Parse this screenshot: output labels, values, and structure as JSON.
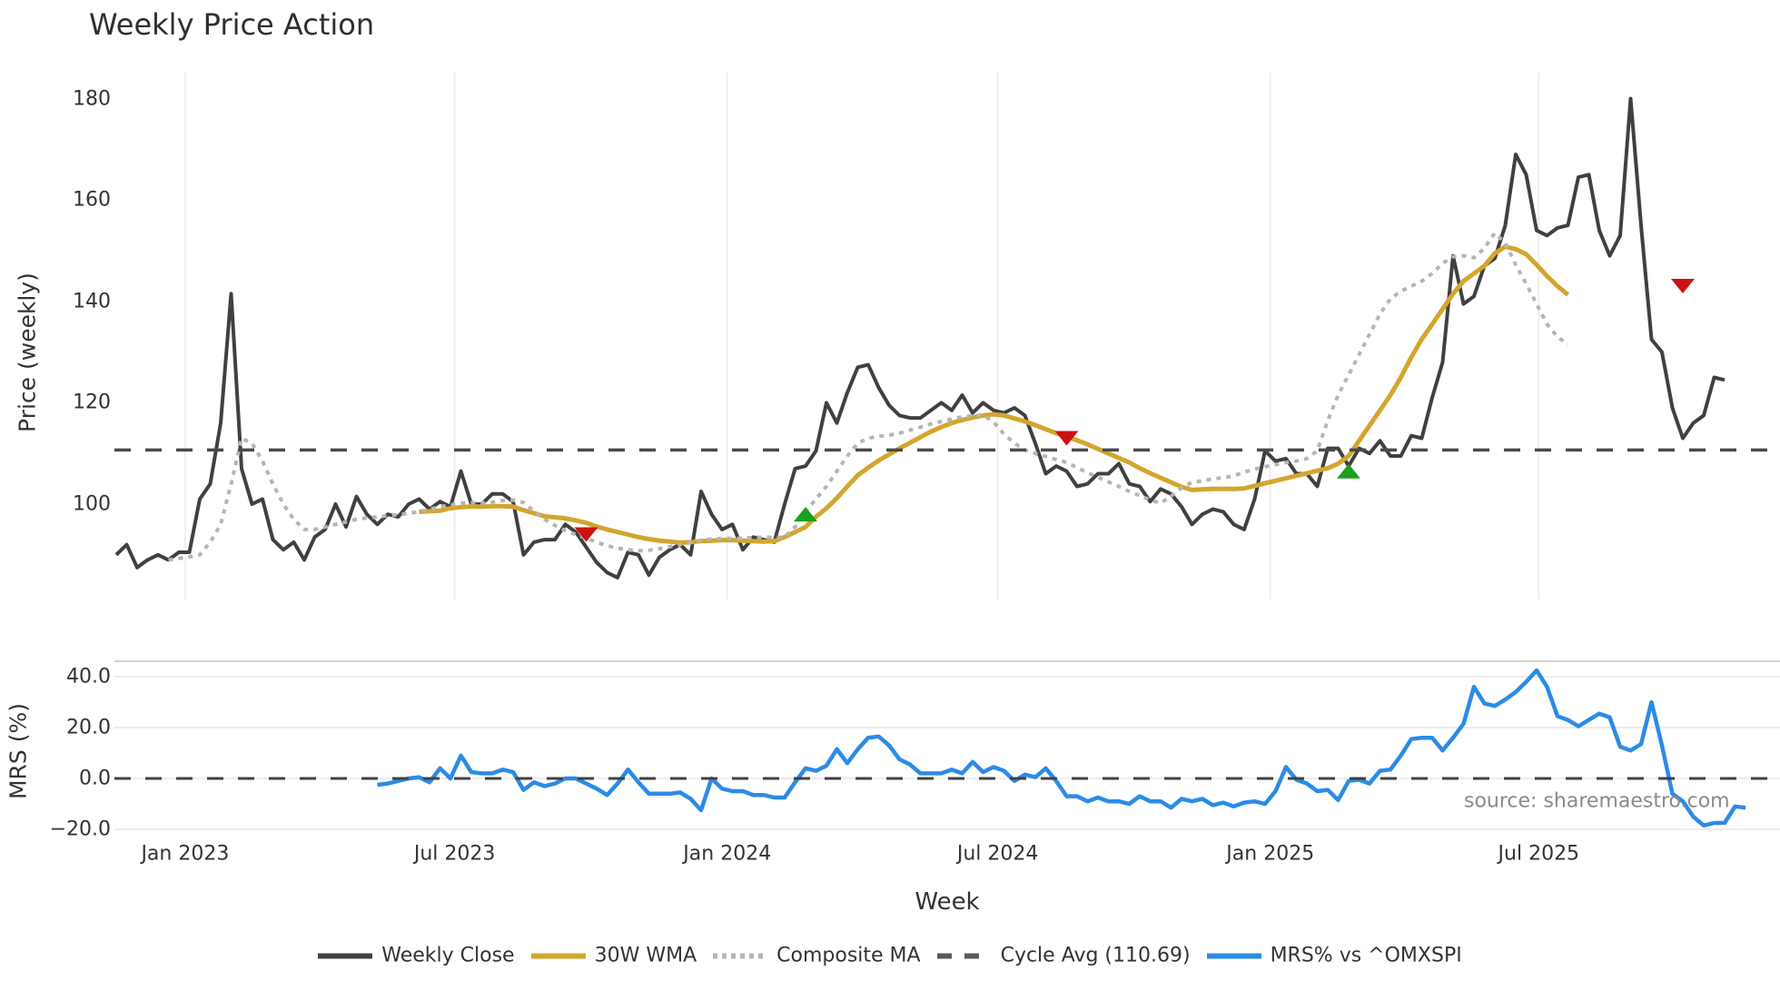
{
  "title": "Weekly Price Action",
  "source_note": "source: sharemaestro.com",
  "chart_data": {
    "type": "line",
    "title": "Weekly Price Action",
    "xlabel": "Week",
    "panels": [
      {
        "name": "price",
        "ylabel": "Price (weekly)",
        "yticks": [
          100,
          120,
          140,
          160,
          180
        ],
        "ylim": [
          80,
          185
        ],
        "grid": true
      },
      {
        "name": "mrs",
        "ylabel": "MRS (%)",
        "yticks": [
          -20.0,
          0.0,
          20.0,
          40.0
        ],
        "ytick_labels": [
          "−20.0",
          "0.0",
          "20.0",
          "40.0"
        ],
        "ylim": [
          -22,
          44
        ],
        "grid": true
      }
    ],
    "x_start": "2022-11-14",
    "x_interval": "weekly",
    "x_ticks": [
      {
        "label": "Jan 2023",
        "index": 6.6
      },
      {
        "label": "Jul 2023",
        "index": 32.4
      },
      {
        "label": "Jan 2024",
        "index": 58.5
      },
      {
        "label": "Jul 2024",
        "index": 84.4
      },
      {
        "label": "Jan 2025",
        "index": 110.5
      },
      {
        "label": "Jul 2025",
        "index": 136.2
      }
    ],
    "series": [
      {
        "name": "Weekly Close",
        "panel": "price",
        "color": "#404040",
        "style": "solid",
        "width": 4,
        "start_index": 0,
        "values": [
          90,
          92,
          87.5,
          89,
          90,
          89,
          90.5,
          90.5,
          101,
          104,
          116,
          141.5,
          107,
          100,
          101,
          93,
          91,
          92.5,
          89,
          93.5,
          95,
          100,
          95.5,
          101.5,
          98,
          96,
          98,
          97.5,
          100,
          101,
          99,
          100.5,
          99.5,
          106.5,
          100,
          100,
          102,
          102,
          100.5,
          90,
          92.5,
          93,
          93,
          96,
          94.5,
          91.5,
          88.5,
          86.5,
          85.5,
          90.5,
          90,
          86,
          89.5,
          91,
          92,
          90,
          102.5,
          98,
          95,
          96,
          91,
          93.5,
          93,
          92.5,
          100,
          107,
          107.5,
          110.5,
          120,
          116,
          122,
          127,
          127.5,
          123,
          119.5,
          117.5,
          117,
          117,
          118.5,
          120,
          118.5,
          121.5,
          118,
          120,
          118.5,
          118,
          119,
          117.5,
          112,
          106,
          107.5,
          106.5,
          103.5,
          104,
          106,
          106,
          108,
          104,
          103.5,
          100.5,
          103,
          102,
          99.5,
          96,
          98,
          99,
          98.5,
          96,
          95,
          101,
          110.5,
          108.5,
          109,
          106,
          106,
          103.5,
          111,
          111,
          107.5,
          111,
          110,
          112.5,
          109.5,
          109.5,
          113.5,
          113,
          121,
          128,
          149,
          139.5,
          141,
          147,
          148.5,
          155,
          169,
          165,
          154,
          153,
          154.5,
          155,
          164.5,
          165,
          154,
          149,
          153,
          180,
          155,
          132.5,
          130,
          119,
          113,
          116,
          117.5,
          125,
          124.5
        ]
      },
      {
        "name": "30W WMA",
        "panel": "price",
        "color": "#d4a52d",
        "style": "solid",
        "width": 5,
        "start_index": 29,
        "values": [
          98.5,
          98.6,
          98.7,
          99.2,
          99.4,
          99.5,
          99.5,
          99.6,
          99.6,
          99.5,
          98.8,
          98.2,
          97.6,
          97.4,
          97.2,
          96.8,
          96.3,
          95.6,
          95.0,
          94.5,
          94.0,
          93.5,
          93.1,
          92.8,
          92.6,
          92.4,
          92.5,
          92.7,
          92.8,
          92.9,
          92.9,
          92.8,
          92.7,
          92.6,
          92.7,
          93.5,
          94.5,
          95.5,
          97.5,
          99.2,
          101.2,
          103.5,
          105.7,
          107.2,
          108.6,
          109.8,
          111.0,
          112.1,
          113.2,
          114.3,
          115.2,
          116.0,
          116.6,
          117.1,
          117.5,
          117.7,
          117.5,
          116.9,
          116.3,
          115.6,
          114.8,
          114.0,
          113.3,
          112.6,
          111.8,
          110.9,
          110.0,
          109.1,
          108.2,
          107.1,
          106.1,
          105.2,
          104.3,
          103.4,
          102.8,
          102.9,
          103.0,
          103.0,
          103.0,
          103.1,
          103.6,
          104.1,
          104.6,
          105.1,
          105.6,
          106.1,
          106.6,
          107.1,
          108.0,
          109.5,
          112.5,
          115.5,
          118.5,
          121.5,
          125.0,
          129.0,
          132.5,
          135.5,
          138.5,
          141.5,
          144.0,
          145.5,
          147.0,
          149.5,
          150.8,
          150.3,
          149.3,
          147.2,
          145.0,
          143.0,
          141.3
        ]
      },
      {
        "name": "Composite MA",
        "panel": "price",
        "color": "#b5b5b5",
        "style": "dotted",
        "width": 4,
        "start_index": 5,
        "values": [
          89,
          89.3,
          89.6,
          90,
          92.5,
          96,
          104,
          113,
          112,
          108.5,
          104,
          100,
          97,
          95,
          95,
          95.5,
          96,
          96.5,
          97,
          97.3,
          97.5,
          97.7,
          97.9,
          98.2,
          98.5,
          99,
          99.5,
          99.8,
          100.2,
          100.3,
          100.2,
          100.4,
          100.7,
          100.8,
          100.3,
          98.6,
          97.0,
          95.8,
          94.8,
          94.0,
          93.3,
          92.5,
          91.8,
          91.3,
          91.0,
          90.8,
          90.9,
          91.2,
          91.6,
          92.0,
          92.4,
          92.9,
          93.1,
          93.2,
          93.2,
          93.3,
          93.4,
          93.5,
          93.4,
          93.5,
          95.5,
          98.5,
          101,
          103.5,
          106.5,
          109.5,
          112,
          113,
          113.4,
          113.6,
          114,
          114.6,
          115.2,
          115.8,
          116.3,
          116.8,
          117.2,
          117.4,
          117.6,
          116.2,
          113.8,
          112,
          110.7,
          110,
          109.4,
          108.8,
          108.2,
          107.2,
          106.2,
          105.3,
          104.4,
          103.5,
          102.5,
          101.7,
          100.8,
          100.2,
          101.6,
          103.2,
          104.3,
          104.6,
          105.0,
          105.2,
          105.6,
          106.3,
          106.9,
          107.4,
          107.8,
          108.2,
          108.5,
          109.0,
          110.5,
          116.5,
          121.5,
          125.5,
          129.5,
          133.5,
          137.5,
          140.5,
          142,
          143,
          144,
          145.5,
          147.5,
          148.8,
          149.0,
          148.6,
          150.5,
          153.5,
          151.5,
          147.2,
          143.5,
          139.5,
          135.5,
          133,
          131.5
        ]
      },
      {
        "name": "Cycle Avg (110.69)",
        "panel": "price",
        "color": "#4a4a4a",
        "style": "dashed",
        "width": 3.5,
        "constant": 110.69
      },
      {
        "name": "MRS% vs ^OMXSPI",
        "panel": "mrs",
        "color": "#2b8be6",
        "style": "solid",
        "width": 4.5,
        "start_index": 25,
        "values": [
          -2.5,
          -2,
          -1,
          0,
          0.5,
          -1.5,
          4,
          0,
          9,
          2.5,
          2,
          2,
          3.5,
          2.5,
          -4.5,
          -1.5,
          -3,
          -2,
          0,
          0,
          -2,
          -4,
          -6.5,
          -2,
          3.5,
          -1.5,
          -6,
          -6,
          -6,
          -5.5,
          -8,
          -12.5,
          0,
          -4,
          -5,
          -5,
          -6.5,
          -6.5,
          -7.5,
          -7.5,
          -1.5,
          4,
          3,
          5,
          11.5,
          6,
          11.5,
          16,
          16.5,
          13,
          7.5,
          5.5,
          2,
          2,
          2,
          3.5,
          2,
          6.5,
          2.5,
          4.5,
          3,
          -1,
          1.5,
          0.5,
          4,
          -1,
          -7,
          -7,
          -9,
          -7.5,
          -9,
          -9,
          -10,
          -7,
          -9,
          -9,
          -11.5,
          -8,
          -9,
          -8,
          -10.5,
          -9.5,
          -11,
          -9.5,
          -9,
          -10,
          -5,
          4.5,
          -0.5,
          -2,
          -5,
          -4.5,
          -8.5,
          -1,
          -0.5,
          -2,
          3,
          3.5,
          9,
          15.5,
          16,
          16,
          11,
          16,
          21.5,
          36,
          29.5,
          28.5,
          31,
          34,
          38,
          42.5,
          36,
          24.5,
          23,
          20.5,
          23,
          25.5,
          24,
          12.5,
          11,
          13.5,
          30,
          13,
          -6,
          -9,
          -15,
          -18.5,
          -17.5,
          -17.5,
          -11,
          -11.5
        ]
      },
      {
        "name": "MRS zero line",
        "panel": "mrs",
        "color": "#404040",
        "style": "dashed",
        "width": 3,
        "constant": 0
      }
    ],
    "markers": [
      {
        "type": "sell",
        "shape": "triangle-down",
        "color": "#cc1111",
        "index": 45,
        "value": 94
      },
      {
        "type": "buy",
        "shape": "triangle-up",
        "color": "#1aa11a",
        "index": 66,
        "value": 98
      },
      {
        "type": "sell",
        "shape": "triangle-down",
        "color": "#cc1111",
        "index": 91,
        "value": 113
      },
      {
        "type": "buy",
        "shape": "triangle-up",
        "color": "#1aa11a",
        "index": 118,
        "value": 106.5
      },
      {
        "type": "sell",
        "shape": "triangle-down",
        "color": "#cc1111",
        "index": 150,
        "value": 143
      }
    ],
    "legend": {
      "position": "bottom-center",
      "entries": [
        {
          "label": "Weekly Close",
          "color": "#404040",
          "style": "solid"
        },
        {
          "label": "30W WMA",
          "color": "#d4a52d",
          "style": "solid"
        },
        {
          "label": "Composite MA",
          "color": "#b5b5b5",
          "style": "dotted"
        },
        {
          "label": "Cycle Avg (110.69)",
          "color": "#5a5a5a",
          "style": "dashed"
        },
        {
          "label": "MRS% vs ^OMXSPI",
          "color": "#2b8be6",
          "style": "solid"
        }
      ]
    }
  }
}
